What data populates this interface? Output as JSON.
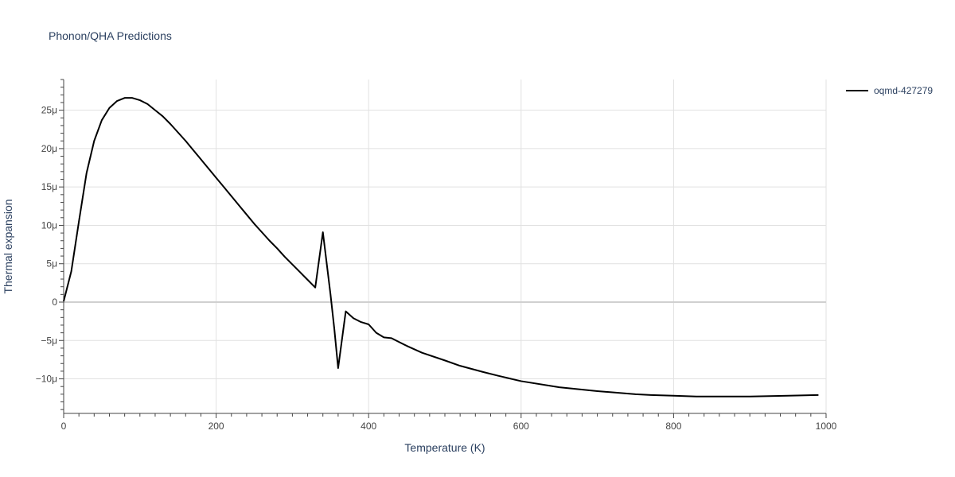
{
  "chart_data": {
    "type": "line",
    "title": "Phonon/QHA Predictions",
    "xlabel": "Temperature (K)",
    "ylabel": "Thermal expansion",
    "xlim": [
      0,
      1000
    ],
    "ylim": [
      -14.5,
      29
    ],
    "x_ticks": [
      0,
      200,
      400,
      600,
      800,
      1000
    ],
    "x_tick_labels": [
      "0",
      "200",
      "400",
      "600",
      "800",
      "1000"
    ],
    "y_ticks": [
      -10,
      -5,
      0,
      5,
      10,
      15,
      20,
      25
    ],
    "y_tick_labels": [
      "−10μ",
      "−5μ",
      "0",
      "5μ",
      "10μ",
      "15μ",
      "20μ",
      "25μ"
    ],
    "grid": true,
    "legend_position": "top-right",
    "series": [
      {
        "name": "oqmd-427279",
        "color": "#000000",
        "x": [
          0,
          10,
          20,
          30,
          40,
          50,
          60,
          70,
          80,
          90,
          100,
          110,
          120,
          130,
          140,
          150,
          160,
          170,
          180,
          190,
          200,
          210,
          220,
          230,
          240,
          250,
          260,
          270,
          280,
          290,
          300,
          310,
          320,
          330,
          340,
          350,
          355,
          360,
          370,
          380,
          390,
          400,
          410,
          420,
          430,
          440,
          450,
          470,
          500,
          520,
          550,
          570,
          600,
          650,
          700,
          750,
          770,
          800,
          830,
          850,
          900,
          950,
          990
        ],
        "y": [
          0.1,
          4.0,
          10.5,
          16.8,
          21.0,
          23.7,
          25.3,
          26.2,
          26.6,
          26.6,
          26.3,
          25.8,
          25.0,
          24.2,
          23.2,
          22.1,
          21.0,
          19.8,
          18.6,
          17.4,
          16.2,
          15.0,
          13.8,
          12.6,
          11.4,
          10.2,
          9.1,
          8.0,
          7.0,
          5.9,
          4.9,
          3.9,
          2.9,
          1.9,
          9.1,
          1.0,
          -3.5,
          -8.6,
          -1.2,
          -2.1,
          -2.6,
          -2.9,
          -4.0,
          -4.6,
          -4.7,
          -5.2,
          -5.7,
          -6.6,
          -7.6,
          -8.3,
          -9.1,
          -9.6,
          -10.3,
          -11.1,
          -11.6,
          -12.0,
          -12.1,
          -12.2,
          -12.3,
          -12.3,
          -12.3,
          -12.2,
          -12.1
        ]
      }
    ]
  }
}
